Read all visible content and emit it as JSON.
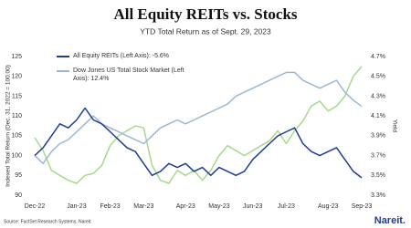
{
  "chart_data": {
    "type": "line",
    "title": "All Equity REITs vs. Stocks",
    "subtitle": "YTD Total Return as of Sept. 29, 2023",
    "y_label": "Indexed Total Return (Dec. 31, 2022 = 100.00)",
    "y2_label": "Yield",
    "source": "Source: FactSet Research Systems, Nareit.",
    "logo": "Nareit.",
    "categories": [
      "Dec-22",
      null,
      null,
      null,
      null,
      "Jan-23",
      null,
      null,
      null,
      "Feb-23",
      null,
      null,
      null,
      "Mar-23",
      null,
      null,
      null,
      null,
      "Apr-23",
      null,
      null,
      null,
      "May-23",
      null,
      null,
      null,
      "Jun-23",
      null,
      null,
      null,
      "Jul-23",
      null,
      null,
      null,
      null,
      "Aug-23",
      null,
      null,
      null,
      "Sep-23"
    ],
    "series": [
      {
        "name": "All Equity REITs (Left Axis): -5.6%",
        "color": "#1f3c96",
        "values": [
          100,
          102,
          105,
          108,
          107,
          109,
          112,
          109,
          108,
          106,
          104,
          102,
          101,
          98,
          95,
          96,
          98,
          97,
          98,
          96,
          97,
          95,
          97,
          96,
          95,
          96,
          99,
          101,
          103,
          105,
          106,
          107,
          103,
          101,
          100,
          101,
          102,
          99,
          96,
          94.4
        ]
      },
      {
        "name": "Dow Jones US Total Stock Market (Left Axis): 12.4%",
        "color": "#9bb8d3",
        "values": [
          100,
          98,
          101,
          103,
          104,
          106,
          108,
          110,
          108,
          107,
          106,
          105,
          104,
          103,
          105,
          107,
          108,
          109,
          108,
          109,
          110,
          111,
          112,
          113,
          115,
          116,
          117,
          118,
          119,
          120,
          121,
          121,
          119,
          118,
          117,
          118,
          119,
          116,
          114,
          112.4
        ]
      },
      {
        "color": "#a8d88a",
        "axis": "y2",
        "values": [
          3.88,
          3.75,
          3.55,
          3.5,
          3.45,
          3.42,
          3.5,
          3.52,
          3.6,
          3.8,
          3.9,
          3.95,
          4.0,
          3.98,
          3.6,
          3.45,
          3.42,
          3.55,
          3.5,
          3.55,
          3.45,
          3.55,
          3.7,
          3.8,
          3.75,
          3.7,
          3.75,
          3.8,
          3.85,
          3.95,
          3.82,
          3.95,
          4.05,
          4.2,
          4.25,
          4.15,
          4.2,
          4.3,
          4.5,
          4.6
        ]
      }
    ],
    "ylim": [
      90,
      125
    ],
    "yticks": [
      90,
      95,
      100,
      105,
      110,
      115,
      120,
      125
    ],
    "y2lim": [
      3.3,
      4.7
    ],
    "y2ticks": [
      {
        "value": 3.3,
        "label": "3.3%"
      },
      {
        "value": 3.5,
        "label": "3.5%"
      },
      {
        "value": 3.7,
        "label": "3.7%"
      },
      {
        "value": 3.9,
        "label": "3.9%"
      },
      {
        "value": 4.1,
        "label": "4.1%"
      },
      {
        "value": 4.3,
        "label": "4.3%"
      },
      {
        "value": 4.5,
        "label": "4.5%"
      },
      {
        "value": 4.7,
        "label": "4.7%"
      }
    ]
  }
}
